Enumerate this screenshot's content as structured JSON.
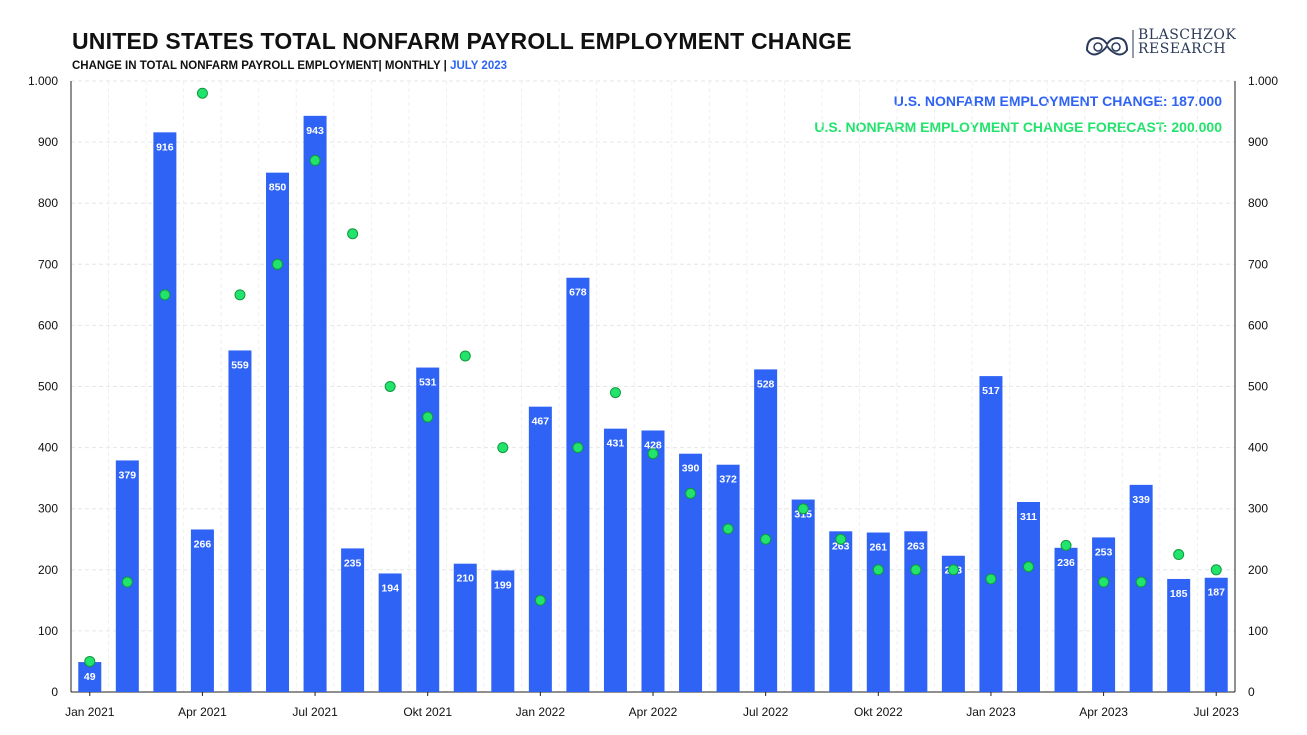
{
  "header": {
    "title": "UNITED STATES TOTAL NONFARM PAYROLL EMPLOYMENT CHANGE",
    "subtitle_main": "CHANGE IN TOTAL NONFARM PAYROLL EMPLOYMENT| MONTHLY | ",
    "subtitle_period": "JULY 2023",
    "brand_line1": "BLASCHZOK",
    "brand_line2": "RESEARCH"
  },
  "legend": {
    "actual_label": "U.S. NONFARM EMPLOYMENT CHANGE: 187.000",
    "forecast_label": "U.S. NONFARM EMPLOYMENT CHANGE FORECAST: 200.000"
  },
  "colors": {
    "bar": "#2e63f6",
    "forecast": "#22e36c",
    "forecast_stroke": "#0f9a3e",
    "grid": "#e6e6e6",
    "axis_text": "#111111"
  },
  "chart_data": {
    "type": "bar",
    "categories": [
      "Jan 2021",
      "Feb 2021",
      "Mar 2021",
      "Apr 2021",
      "May 2021",
      "Jun 2021",
      "Jul 2021",
      "Aug 2021",
      "Sep 2021",
      "Okt 2021",
      "Nov 2021",
      "Dec 2021",
      "Jan 2022",
      "Feb 2022",
      "Mar 2022",
      "Apr 2022",
      "May 2022",
      "Jun 2022",
      "Jul 2022",
      "Aug 2022",
      "Sep 2022",
      "Okt 2022",
      "Nov 2022",
      "Dec 2022",
      "Jan 2023",
      "Feb 2023",
      "Mar 2023",
      "Apr 2023",
      "May 2023",
      "Jun 2023",
      "Jul 2023"
    ],
    "x_tick_labels": [
      "Jan 2021",
      "Apr 2021",
      "Jul 2021",
      "Okt 2021",
      "Jan 2022",
      "Apr 2022",
      "Jul 2022",
      "Okt 2022",
      "Jan 2023",
      "Apr 2023",
      "Jul 2023"
    ],
    "series": [
      {
        "type": "bar",
        "values": [
          49,
          379,
          916,
          266,
          559,
          850,
          943,
          235,
          194,
          531,
          210,
          199,
          467,
          678,
          431,
          428,
          390,
          372,
          528,
          315,
          263,
          261,
          263,
          223,
          517,
          311,
          236,
          253,
          339,
          185,
          187
        ]
      },
      {
        "type": "scatter",
        "values": [
          50,
          180,
          650,
          980,
          650,
          700,
          870,
          750,
          500,
          450,
          550,
          400,
          150,
          400,
          490,
          390,
          325,
          267,
          250,
          300,
          250,
          200,
          200,
          200,
          185,
          205,
          240,
          180,
          180,
          225,
          200
        ]
      }
    ],
    "ylim": [
      0,
      1000
    ],
    "y_ticks": [
      0,
      100,
      200,
      300,
      400,
      500,
      600,
      700,
      800,
      900,
      1000
    ],
    "y_tick_labels": [
      "0",
      "100",
      "200",
      "300",
      "400",
      "500",
      "600",
      "700",
      "800",
      "900",
      "1.000"
    ],
    "grid": true,
    "legend_position": "top-right"
  }
}
